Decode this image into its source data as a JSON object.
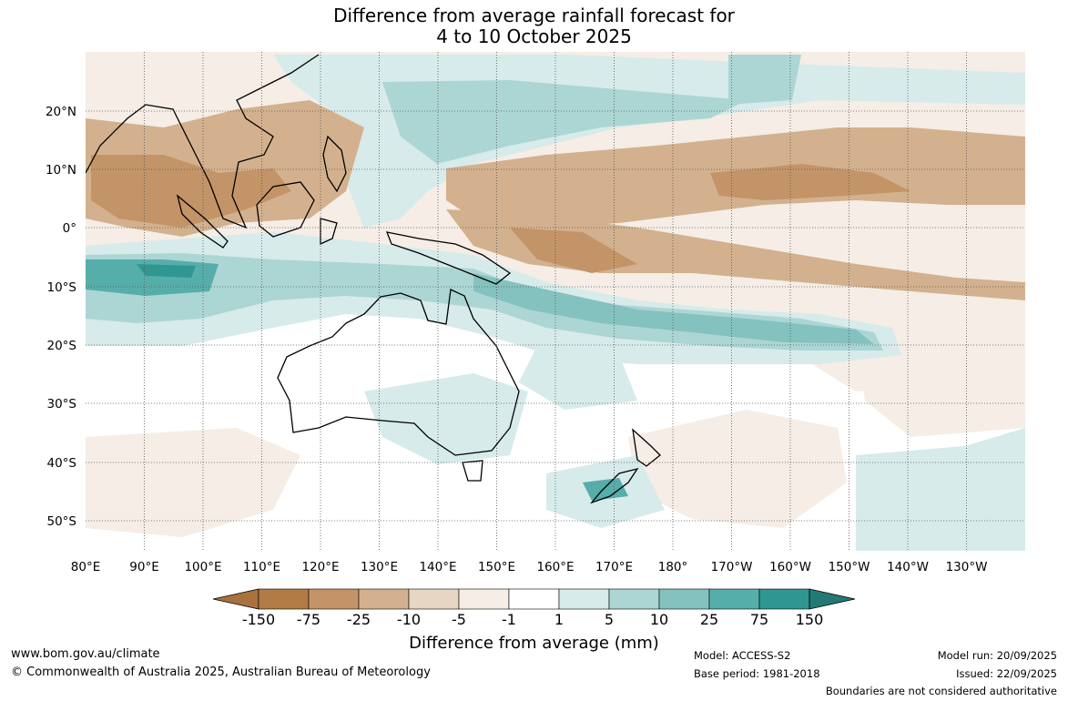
{
  "title_line1": "Difference from average rainfall forecast for",
  "title_line2": "4 to 10 October 2025",
  "lat_labels": [
    "20°N",
    "10°N",
    "0°",
    "10°S",
    "20°S",
    "30°S",
    "40°S",
    "50°S"
  ],
  "lon_labels": [
    "80°E",
    "90°E",
    "100°E",
    "110°E",
    "120°E",
    "130°E",
    "140°E",
    "150°E",
    "160°E",
    "170°E",
    "180°",
    "170°W",
    "160°W",
    "150°W",
    "140°W",
    "130°W"
  ],
  "colorbar": {
    "title": "Difference from average (mm)",
    "labels": [
      "-150",
      "-75",
      "-25",
      "-10",
      "-5",
      "-1",
      "1",
      "5",
      "10",
      "25",
      "75",
      "150"
    ],
    "colors": [
      "#a8713d",
      "#b27b45",
      "#c39467",
      "#d3b18e",
      "#e8d6c4",
      "#f5ede6",
      "#ffffff",
      "#d6ebea",
      "#acd6d4",
      "#84c2bf",
      "#56aeaa",
      "#2f9692",
      "#237975"
    ]
  },
  "footer": {
    "website": "www.bom.gov.au/climate",
    "copyright": "© Commonwealth of Australia 2025, Australian Bureau of Meteorology",
    "model": "Model: ACCESS-S2",
    "base_period": "Base period: 1981-2018",
    "model_run": "Model run: 20/09/2025",
    "issued": "Issued: 22/09/2025",
    "boundaries": "Boundaries are not considered authoritative"
  }
}
